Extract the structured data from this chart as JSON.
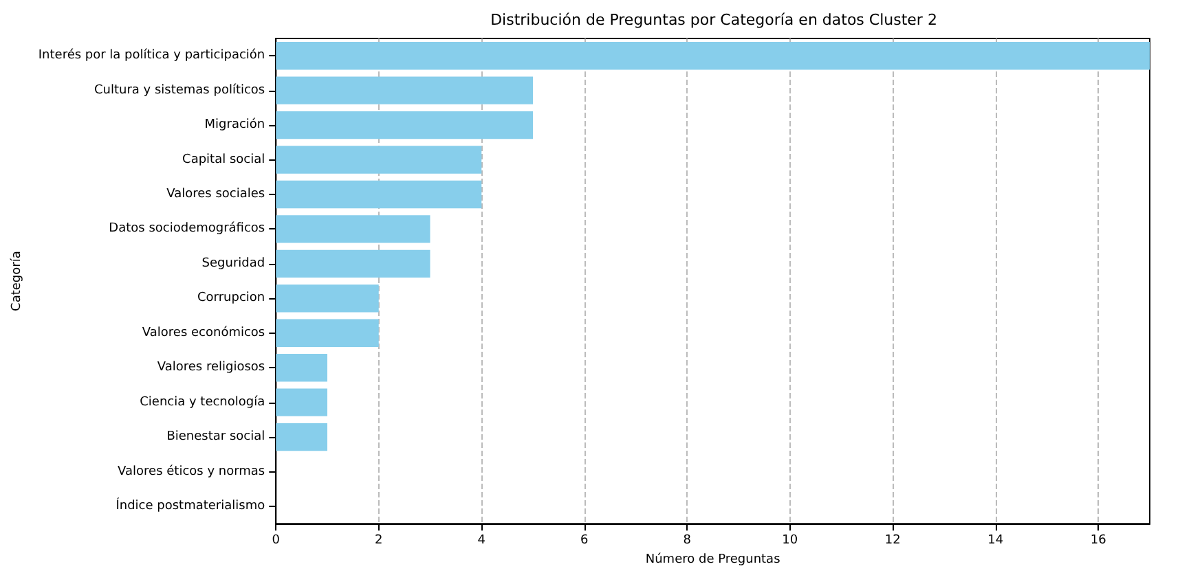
{
  "chart_data": {
    "type": "bar",
    "orientation": "horizontal",
    "title": "Distribución de Preguntas por Categoría en datos Cluster 2",
    "xlabel": "Número de Preguntas",
    "ylabel": "Categoría",
    "categories": [
      "Interés por la política y participación",
      "Cultura y sistemas políticos",
      "Migración",
      "Capital social",
      "Valores sociales",
      "Datos sociodemográficos",
      "Seguridad",
      "Corrupcion",
      "Valores económicos",
      "Valores religiosos",
      "Ciencia y tecnología",
      "Bienestar social",
      "Valores éticos y normas",
      "Índice postmaterialismo"
    ],
    "values": [
      17,
      5,
      5,
      4,
      4,
      3,
      3,
      2,
      2,
      1,
      1,
      1,
      0,
      0
    ],
    "color": "#87ceeb",
    "xlim": [
      0,
      17
    ],
    "xticks": [
      0,
      2,
      4,
      6,
      8,
      10,
      12,
      14,
      16
    ],
    "grid": "x"
  }
}
